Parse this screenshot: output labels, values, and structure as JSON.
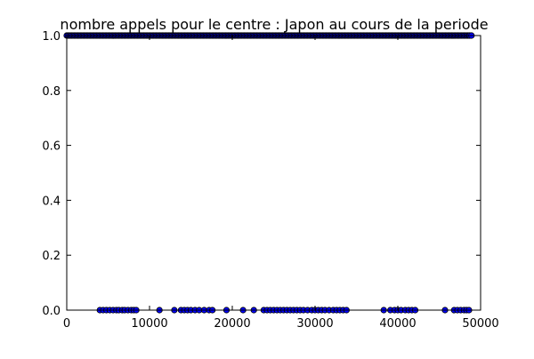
{
  "chart_data": {
    "type": "scatter",
    "title": "nombre appels pour le centre : Japon au cours de la periode",
    "xlabel": "",
    "ylabel": "",
    "xlim": [
      0,
      50000
    ],
    "ylim": [
      0,
      1.0
    ],
    "x_ticks": [
      "0",
      "10000",
      "20000",
      "30000",
      "40000",
      "50000"
    ],
    "y_ticks": [
      "0.0",
      "0.2",
      "0.4",
      "0.6",
      "0.8",
      "1.0"
    ],
    "grid": false,
    "marker_color": "#0000ff",
    "series": [
      {
        "points_y0_x": [
          4000,
          4400,
          4800,
          5200,
          5600,
          6000,
          6300,
          6700,
          7000,
          7400,
          7800,
          8100,
          8400,
          11200,
          13000,
          13800,
          14200,
          14600,
          15000,
          15500,
          16000,
          16600,
          17200,
          17600,
          19300,
          21300,
          22600,
          23800,
          24200,
          24600,
          25000,
          25400,
          25800,
          26200,
          26600,
          27000,
          27400,
          27800,
          28200,
          28600,
          29100,
          29600,
          30000,
          30400,
          30800,
          31200,
          31700,
          32200,
          32600,
          33000,
          33400,
          33800,
          38300,
          39100,
          39600,
          40000,
          40400,
          40900,
          41300,
          41700,
          42100,
          45700,
          46800,
          47200,
          47600,
          48000,
          48300,
          48600
        ],
        "points_y1_x_range": [
          0,
          48600
        ],
        "points_y1_extra_x": [
          48700,
          48900
        ]
      }
    ]
  }
}
